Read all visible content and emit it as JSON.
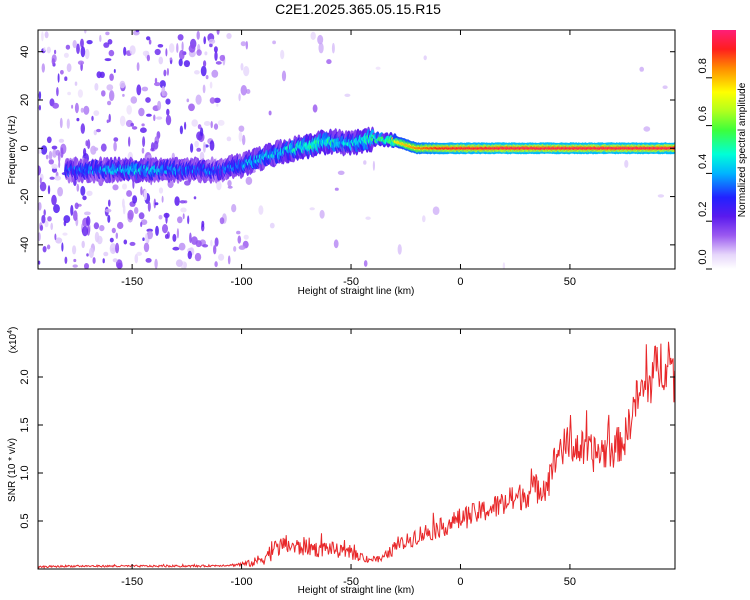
{
  "title": "C2E1.2025.365.05.15.R15",
  "chart_data": [
    {
      "type": "heatmap",
      "xlabel": "Height of straight line (km)",
      "ylabel": "Frequency (Hz)",
      "xlim": [
        -193,
        98
      ],
      "ylim": [
        -50,
        49
      ],
      "xticks": [
        -150,
        -100,
        -50,
        0,
        50
      ],
      "yticks": [
        -40,
        -20,
        0,
        20,
        40
      ],
      "xtick_labels": [
        "-150",
        "-100",
        "-50",
        "0",
        "50"
      ],
      "ytick_labels": [
        "-40",
        "-20",
        "0",
        "20",
        "40"
      ],
      "colorbar": {
        "label": "Normalized spectral amplitude",
        "range": [
          0,
          1
        ],
        "ticks": [
          0.0,
          0.2,
          0.4,
          0.6,
          0.8
        ],
        "tick_labels": [
          "0.0",
          "0.2",
          "0.4",
          "0.6",
          "0.8"
        ]
      },
      "ridge": {
        "description": "frequency centre of dominant spectral band versus height",
        "heights": [
          -175,
          -150,
          -125,
          -110,
          -100,
          -90,
          -80,
          -70,
          -60,
          -50,
          -40,
          -35,
          -30,
          -20,
          -10,
          0,
          10,
          20,
          50,
          98
        ],
        "frequency_hz": [
          -9,
          -9,
          -9,
          -9,
          -7,
          -4,
          -1,
          1,
          3,
          2,
          4,
          4,
          3,
          0,
          0,
          0,
          0,
          0,
          0,
          0
        ],
        "peak_amplitude": [
          0.35,
          0.45,
          0.38,
          0.35,
          0.4,
          0.45,
          0.45,
          0.55,
          0.5,
          0.45,
          0.55,
          0.6,
          0.75,
          0.85,
          0.92,
          0.95,
          0.95,
          0.97,
          0.97,
          0.97
        ]
      }
    },
    {
      "type": "line",
      "xlabel": "Height of straight line (km)",
      "ylabel": "SNR (10 * v/v)",
      "y_multiplier": "(x10",
      "y_multiplier_exp": "4",
      "y_multiplier_close": ")",
      "xlim": [
        -193,
        98
      ],
      "ylim": [
        0,
        2.5
      ],
      "xticks": [
        -150,
        -100,
        -50,
        0,
        50
      ],
      "xtick_labels": [
        "-150",
        "-100",
        "-50",
        "0",
        "50"
      ],
      "yticks": [
        0.5,
        1.0,
        1.5,
        2.0
      ],
      "ytick_labels": [
        "0.5",
        "1.0",
        "1.5",
        "2.0"
      ],
      "series": [
        {
          "name": "SNR",
          "color": "#e8282a",
          "x": [
            -193,
            -180,
            -160,
            -140,
            -120,
            -105,
            -95,
            -90,
            -85,
            -80,
            -75,
            -70,
            -65,
            -60,
            -55,
            -50,
            -45,
            -40,
            -36,
            -30,
            -25,
            -20,
            -10,
            0,
            10,
            20,
            30,
            40,
            45,
            50,
            60,
            70,
            75,
            80,
            85,
            90,
            95,
            98
          ],
          "y": [
            0.02,
            0.03,
            0.03,
            0.03,
            0.03,
            0.04,
            0.06,
            0.12,
            0.2,
            0.26,
            0.22,
            0.24,
            0.2,
            0.22,
            0.18,
            0.16,
            0.12,
            0.1,
            0.1,
            0.22,
            0.28,
            0.35,
            0.42,
            0.52,
            0.6,
            0.68,
            0.78,
            0.9,
            1.25,
            1.3,
            1.2,
            1.25,
            1.35,
            1.75,
            1.9,
            2.1,
            2.2,
            1.95
          ],
          "noise_amplitude": [
            0.01,
            0.01,
            0.01,
            0.01,
            0.01,
            0.01,
            0.04,
            0.08,
            0.1,
            0.1,
            0.1,
            0.1,
            0.08,
            0.08,
            0.07,
            0.06,
            0.05,
            0.04,
            0.04,
            0.07,
            0.08,
            0.1,
            0.1,
            0.12,
            0.12,
            0.14,
            0.15,
            0.18,
            0.2,
            0.2,
            0.2,
            0.2,
            0.2,
            0.22,
            0.25,
            0.3,
            0.3,
            0.25
          ]
        }
      ]
    }
  ],
  "colors": {
    "axis": "#000000",
    "line": "#e8282a",
    "background": "#ffffff"
  }
}
